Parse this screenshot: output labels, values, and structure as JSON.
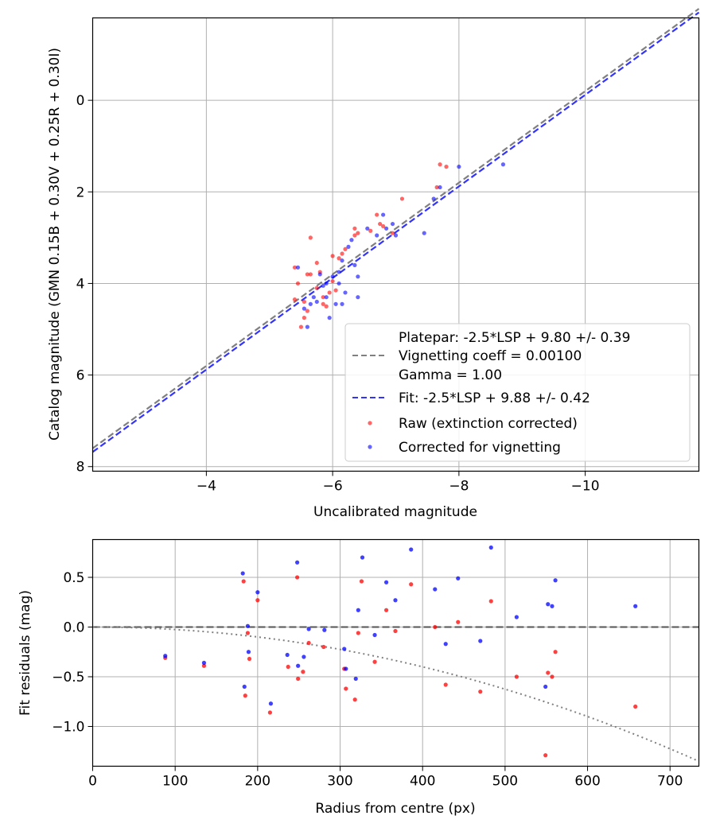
{
  "chart_data": [
    {
      "type": "scatter",
      "xlabel": "Uncalibrated magnitude",
      "ylabel": "Catalog magnitude (GMN 0.15B + 0.30V + 0.25R + 0.30I)",
      "xlim": [
        -2.2,
        -11.8
      ],
      "ylim": [
        8.1,
        -1.8
      ],
      "x_ticks": [
        -4,
        -6,
        -8,
        -10
      ],
      "x_tick_labels": [
        "−4",
        "−6",
        "−8",
        "−10"
      ],
      "y_ticks": [
        0,
        2,
        4,
        6,
        8
      ],
      "y_tick_labels": [
        "0",
        "2",
        "4",
        "6",
        "8"
      ],
      "grid": true,
      "legend": {
        "position": "lower-right",
        "entries": [
          {
            "label": "Platepar: -2.5*LSP + 9.80 +/- 0.39",
            "label2": "Vignetting coeff = 0.00100",
            "label3": "Gamma = 1.00",
            "color": "#808080",
            "style": "dashed"
          },
          {
            "label": "Fit: -2.5*LSP + 9.88 +/- 0.42",
            "color": "#3333ff",
            "style": "dashed"
          },
          {
            "label": "Raw (extinction corrected)",
            "color": "#ff0000",
            "style": "marker"
          },
          {
            "label": "Corrected for vignetting",
            "color": "#0000ff",
            "style": "marker"
          }
        ]
      },
      "lines": [
        {
          "name": "Platepar",
          "slope": 1.0,
          "intercept": 9.8,
          "color": "#808080"
        },
        {
          "name": "Fit",
          "slope": 1.0,
          "intercept": 9.88,
          "color": "#3333ff"
        }
      ],
      "series": [
        {
          "name": "Raw (extinction corrected)",
          "color": "#ff0000",
          "points": [
            [
              -5.4,
              4.35
            ],
            [
              -5.5,
              4.95
            ],
            [
              -5.6,
              4.6
            ],
            [
              -5.55,
              4.4
            ],
            [
              -5.45,
              4.0
            ],
            [
              -5.4,
              3.65
            ],
            [
              -5.6,
              3.8
            ],
            [
              -5.65,
              3.8
            ],
            [
              -5.75,
              3.55
            ],
            [
              -5.8,
              3.75
            ],
            [
              -5.85,
              4.3
            ],
            [
              -5.9,
              4.5
            ],
            [
              -5.95,
              4.2
            ],
            [
              -6.0,
              3.95
            ],
            [
              -6.05,
              4.15
            ],
            [
              -6.0,
              3.4
            ],
            [
              -6.1,
              3.45
            ],
            [
              -6.15,
              3.35
            ],
            [
              -6.2,
              3.25
            ],
            [
              -6.35,
              2.8
            ],
            [
              -6.4,
              2.9
            ],
            [
              -6.35,
              2.95
            ],
            [
              -6.7,
              2.5
            ],
            [
              -6.75,
              2.7
            ],
            [
              -6.8,
              2.75
            ],
            [
              -6.95,
              2.9
            ],
            [
              -7.1,
              2.15
            ],
            [
              -7.65,
              1.9
            ],
            [
              -7.7,
              1.4
            ],
            [
              -7.8,
              1.45
            ],
            [
              -6.6,
              2.85
            ],
            [
              -5.65,
              3.0
            ],
            [
              -5.75,
              4.1
            ],
            [
              -5.85,
              4.45
            ],
            [
              -5.55,
              4.75
            ]
          ]
        },
        {
          "name": "Corrected for vignetting",
          "color": "#0000ff",
          "points": [
            [
              -5.45,
              3.65
            ],
            [
              -5.55,
              4.55
            ],
            [
              -5.6,
              4.95
            ],
            [
              -5.7,
              4.3
            ],
            [
              -5.75,
              4.4
            ],
            [
              -5.8,
              3.8
            ],
            [
              -5.85,
              4.05
            ],
            [
              -5.9,
              4.0
            ],
            [
              -5.95,
              4.75
            ],
            [
              -6.0,
              3.85
            ],
            [
              -6.05,
              4.45
            ],
            [
              -6.1,
              3.75
            ],
            [
              -6.15,
              3.5
            ],
            [
              -6.2,
              4.2
            ],
            [
              -6.25,
              3.2
            ],
            [
              -6.3,
              3.05
            ],
            [
              -6.35,
              3.6
            ],
            [
              -6.4,
              3.85
            ],
            [
              -6.4,
              4.3
            ],
            [
              -6.55,
              2.8
            ],
            [
              -6.7,
              2.95
            ],
            [
              -6.8,
              2.5
            ],
            [
              -6.85,
              2.8
            ],
            [
              -6.95,
              2.7
            ],
            [
              -7.0,
              2.95
            ],
            [
              -7.45,
              2.9
            ],
            [
              -7.6,
              2.15
            ],
            [
              -7.7,
              1.9
            ],
            [
              -8.0,
              1.45
            ],
            [
              -8.7,
              1.4
            ],
            [
              -6.1,
              4.0
            ],
            [
              -5.9,
              4.3
            ],
            [
              -6.15,
              4.45
            ],
            [
              -5.65,
              4.45
            ]
          ]
        }
      ]
    },
    {
      "type": "scatter",
      "xlabel": "Radius from centre (px)",
      "ylabel": "Fit residuals (mag)",
      "xlim": [
        0,
        735
      ],
      "ylim": [
        -1.4,
        0.88
      ],
      "x_ticks": [
        0,
        100,
        200,
        300,
        400,
        500,
        600,
        700
      ],
      "x_tick_labels": [
        "0",
        "100",
        "200",
        "300",
        "400",
        "500",
        "600",
        "700"
      ],
      "y_ticks": [
        0.5,
        0.0,
        -0.5,
        -1.0
      ],
      "y_tick_labels": [
        "0.5",
        "0.0",
        "−0.5",
        "−1.0"
      ],
      "grid": true,
      "lines": [
        {
          "name": "zero",
          "type": "hline",
          "y": 0.0,
          "color": "#555555",
          "style": "dashed"
        },
        {
          "name": "vignetting model",
          "type": "curve",
          "coeff": 0.001,
          "color": "#808080",
          "style": "dotted"
        }
      ],
      "series": [
        {
          "name": "Raw (extinction corrected)",
          "color": "#ff0000",
          "points": [
            [
              88,
              -0.31
            ],
            [
              135,
              -0.39
            ],
            [
              183,
              0.46
            ],
            [
              185,
              -0.69
            ],
            [
              188,
              -0.06
            ],
            [
              190,
              -0.32
            ],
            [
              200,
              0.27
            ],
            [
              215,
              -0.86
            ],
            [
              237,
              -0.4
            ],
            [
              248,
              0.5
            ],
            [
              249,
              -0.52
            ],
            [
              255,
              -0.45
            ],
            [
              262,
              -0.16
            ],
            [
              280,
              -0.2
            ],
            [
              305,
              -0.42
            ],
            [
              307,
              -0.62
            ],
            [
              318,
              -0.73
            ],
            [
              322,
              -0.06
            ],
            [
              326,
              0.46
            ],
            [
              342,
              -0.35
            ],
            [
              356,
              0.17
            ],
            [
              367,
              -0.04
            ],
            [
              386,
              0.43
            ],
            [
              415,
              0.0
            ],
            [
              428,
              -0.58
            ],
            [
              443,
              0.05
            ],
            [
              470,
              -0.65
            ],
            [
              483,
              0.26
            ],
            [
              514,
              -0.5
            ],
            [
              549,
              -1.29
            ],
            [
              552,
              -0.46
            ],
            [
              557,
              -0.5
            ],
            [
              561,
              -0.25
            ],
            [
              658,
              -0.8
            ]
          ]
        },
        {
          "name": "Corrected for vignetting",
          "color": "#0000ff",
          "points": [
            [
              88,
              -0.29
            ],
            [
              135,
              -0.36
            ],
            [
              182,
              0.54
            ],
            [
              184,
              -0.6
            ],
            [
              188,
              0.01
            ],
            [
              189,
              -0.25
            ],
            [
              200,
              0.35
            ],
            [
              216,
              -0.77
            ],
            [
              236,
              -0.28
            ],
            [
              248,
              0.65
            ],
            [
              249,
              -0.39
            ],
            [
              256,
              -0.3
            ],
            [
              262,
              -0.02
            ],
            [
              281,
              -0.03
            ],
            [
              305,
              -0.22
            ],
            [
              307,
              -0.42
            ],
            [
              319,
              -0.52
            ],
            [
              322,
              0.17
            ],
            [
              327,
              0.7
            ],
            [
              342,
              -0.08
            ],
            [
              356,
              0.45
            ],
            [
              367,
              0.27
            ],
            [
              386,
              0.78
            ],
            [
              415,
              0.38
            ],
            [
              428,
              -0.17
            ],
            [
              443,
              0.49
            ],
            [
              470,
              -0.14
            ],
            [
              483,
              0.8
            ],
            [
              514,
              0.1
            ],
            [
              549,
              -0.6
            ],
            [
              552,
              0.23
            ],
            [
              557,
              0.21
            ],
            [
              561,
              0.47
            ],
            [
              658,
              0.21
            ]
          ]
        }
      ]
    }
  ]
}
